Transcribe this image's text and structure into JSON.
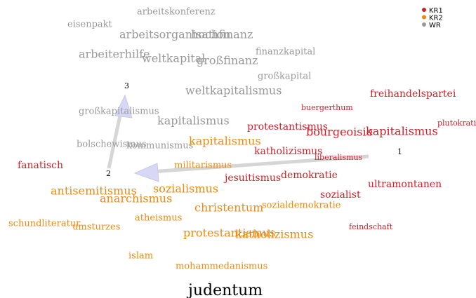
{
  "legend": [
    {
      "label": "KR1",
      "color": "#d0202a"
    },
    {
      "label": "KR2",
      "color": "#ec8a10"
    },
    {
      "label": "WR",
      "color": "#999999"
    }
  ],
  "words": [
    {
      "text": "arbeitskonferenz",
      "group": 2
    },
    {
      "text": "eisenpakt",
      "group": 2
    },
    {
      "text": "arbeitsorganisation",
      "group": 2
    },
    {
      "text": "hochfinanz",
      "group": 2
    },
    {
      "text": "finanzkapital",
      "group": 2
    },
    {
      "text": "arbeiterhilfe",
      "group": 2
    },
    {
      "text": "weltkapital",
      "group": 2
    },
    {
      "text": "großfinanz",
      "group": 2
    },
    {
      "text": "großkapital",
      "group": 2
    },
    {
      "text": "weltkapitalismus",
      "group": 2
    },
    {
      "text": "großkapitalismus",
      "group": 2
    },
    {
      "text": "kapitalismus",
      "group": 2
    },
    {
      "text": "bolschewismus",
      "group": 2
    },
    {
      "text": "kommunismus",
      "group": 2
    },
    {
      "text": "freihandelspartei",
      "group": 0
    },
    {
      "text": "buergerthum",
      "group": 0
    },
    {
      "text": "protestantismus",
      "group": 0
    },
    {
      "text": "bourgeoisie",
      "group": 0
    },
    {
      "text": "kapitalismus",
      "group": 0
    },
    {
      "text": "plutokratie",
      "group": 0
    },
    {
      "text": "katholizismus",
      "group": 0
    },
    {
      "text": "liberalismus",
      "group": 0
    },
    {
      "text": "fanatisch",
      "group": 0
    },
    {
      "text": "jesuitismus",
      "group": 0
    },
    {
      "text": "demokratie",
      "group": 0
    },
    {
      "text": "ultramontanen",
      "group": 0
    },
    {
      "text": "sozialist",
      "group": 0
    },
    {
      "text": "feindschaft",
      "group": 0
    },
    {
      "text": "kapitalismus",
      "group": 1
    },
    {
      "text": "militarismus",
      "group": 1
    },
    {
      "text": "antisemitismus",
      "group": 1
    },
    {
      "text": "sozialismus",
      "group": 1
    },
    {
      "text": "anarchismus",
      "group": 1
    },
    {
      "text": "christentum",
      "group": 1
    },
    {
      "text": "sozialdemokratie",
      "group": 1
    },
    {
      "text": "atheismus",
      "group": 1
    },
    {
      "text": "schundliteratur",
      "group": 1
    },
    {
      "text": "umsturzes",
      "group": 1
    },
    {
      "text": "protestantismus",
      "group": 1
    },
    {
      "text": "katholizismus",
      "group": 1
    },
    {
      "text": "islam",
      "group": 1
    },
    {
      "text": "mohammedanismus",
      "group": 1
    }
  ],
  "target": "judentum",
  "points": [
    "1",
    "2",
    "3"
  ]
}
